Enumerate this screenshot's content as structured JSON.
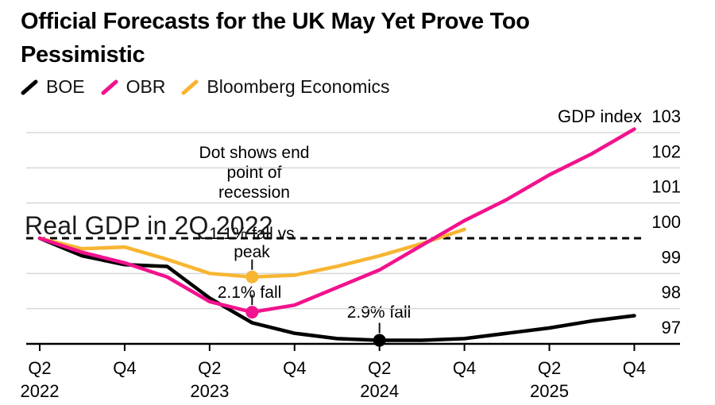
{
  "title": {
    "line1": "Official Forecasts for the UK May Yet Prove Too",
    "line2": "Pessimistic"
  },
  "legend": {
    "items": [
      {
        "label": "BOE",
        "color": "#000000"
      },
      {
        "label": "OBR",
        "color": "#f2128d"
      },
      {
        "label": "Bloomberg Economics",
        "color": "#f7b532"
      }
    ]
  },
  "annotations": {
    "dot_note_lines": [
      "Dot shows end",
      "point of",
      "recession"
    ],
    "baseline_label": "Real GDP in 2Q 2022",
    "bbg_note_lines": [
      "1.1% fall vs",
      "peak"
    ],
    "obr_note": "2.1% fall",
    "boe_note": "2.9% fall"
  },
  "chart_data": {
    "type": "line",
    "title": "Official Forecasts for the UK May Yet Prove Too Pessimistic",
    "xlabel": "",
    "ylabel": "GDP index",
    "ylim": [
      97,
      103
    ],
    "y_ticks": [
      103,
      102,
      101,
      100,
      99,
      98,
      97
    ],
    "grid": true,
    "legend_position": "top-left",
    "categories": [
      "Q2 2022",
      "Q3 2022",
      "Q4 2022",
      "Q1 2023",
      "Q2 2023",
      "Q3 2023",
      "Q4 2023",
      "Q1 2024",
      "Q2 2024",
      "Q3 2024",
      "Q4 2024",
      "Q1 2025",
      "Q2 2025",
      "Q3 2025",
      "Q4 2025"
    ],
    "x_ticks": [
      {
        "index": 0,
        "label": "Q2",
        "year": "2022"
      },
      {
        "index": 2,
        "label": "Q4",
        "year": ""
      },
      {
        "index": 4,
        "label": "Q2",
        "year": "2023"
      },
      {
        "index": 6,
        "label": "Q4",
        "year": ""
      },
      {
        "index": 8,
        "label": "Q2",
        "year": "2024"
      },
      {
        "index": 10,
        "label": "Q4",
        "year": ""
      },
      {
        "index": 12,
        "label": "Q2",
        "year": "2025"
      },
      {
        "index": 14,
        "label": "Q4",
        "year": ""
      }
    ],
    "series": [
      {
        "name": "BOE",
        "color": "#000000",
        "values": [
          100,
          99.5,
          99.25,
          99.2,
          98.3,
          97.6,
          97.3,
          97.15,
          97.1,
          97.1,
          97.15,
          97.3,
          97.45,
          97.65,
          97.8
        ]
      },
      {
        "name": "OBR",
        "color": "#f2128d",
        "values": [
          100,
          99.6,
          99.3,
          98.9,
          98.2,
          97.9,
          98.1,
          98.6,
          99.1,
          99.8,
          100.5,
          101.1,
          101.8,
          102.4,
          103.1
        ]
      },
      {
        "name": "Bloomberg Economics",
        "color": "#f7b532",
        "values": [
          100,
          99.7,
          99.75,
          99.4,
          99.0,
          98.9,
          98.95,
          99.2,
          99.5,
          99.85,
          100.25
        ]
      }
    ],
    "baseline": {
      "value": 100,
      "style": "dashed",
      "meaning": "Real GDP in 2Q 2022"
    },
    "end_markers": [
      {
        "series": "Bloomberg Economics",
        "index": 5,
        "value": 98.9
      },
      {
        "series": "OBR",
        "index": 5,
        "value": 97.9
      },
      {
        "series": "BOE",
        "index": 8,
        "value": 97.1
      }
    ],
    "colors": {
      "grid": "#d8d8d8",
      "axis": "#000000",
      "baseline_dash": "#000000"
    }
  }
}
